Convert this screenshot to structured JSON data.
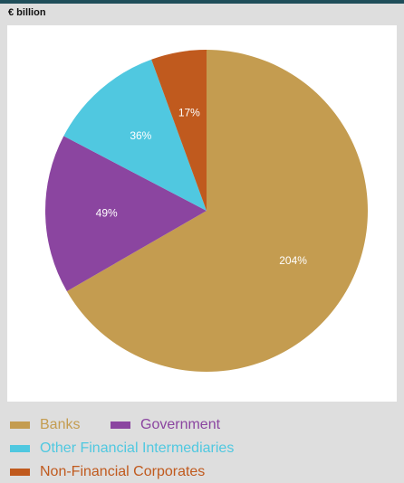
{
  "unit_label": "€ billion",
  "chart_data": {
    "type": "pie",
    "title": "",
    "slices": [
      {
        "label": "Banks",
        "value": 204,
        "data_label": "204%",
        "color": "#c49c50"
      },
      {
        "label": "Government",
        "value": 49,
        "data_label": "49%",
        "color": "#8b45a0"
      },
      {
        "label": "Other Financial Intermediaries",
        "value": 36,
        "data_label": "36%",
        "color": "#50c8e0"
      },
      {
        "label": "Non-Financial Corporates",
        "value": 17,
        "data_label": "17%",
        "color": "#c05a1e"
      }
    ],
    "legend_position": "bottom",
    "data_label_color": "#ffffff"
  }
}
